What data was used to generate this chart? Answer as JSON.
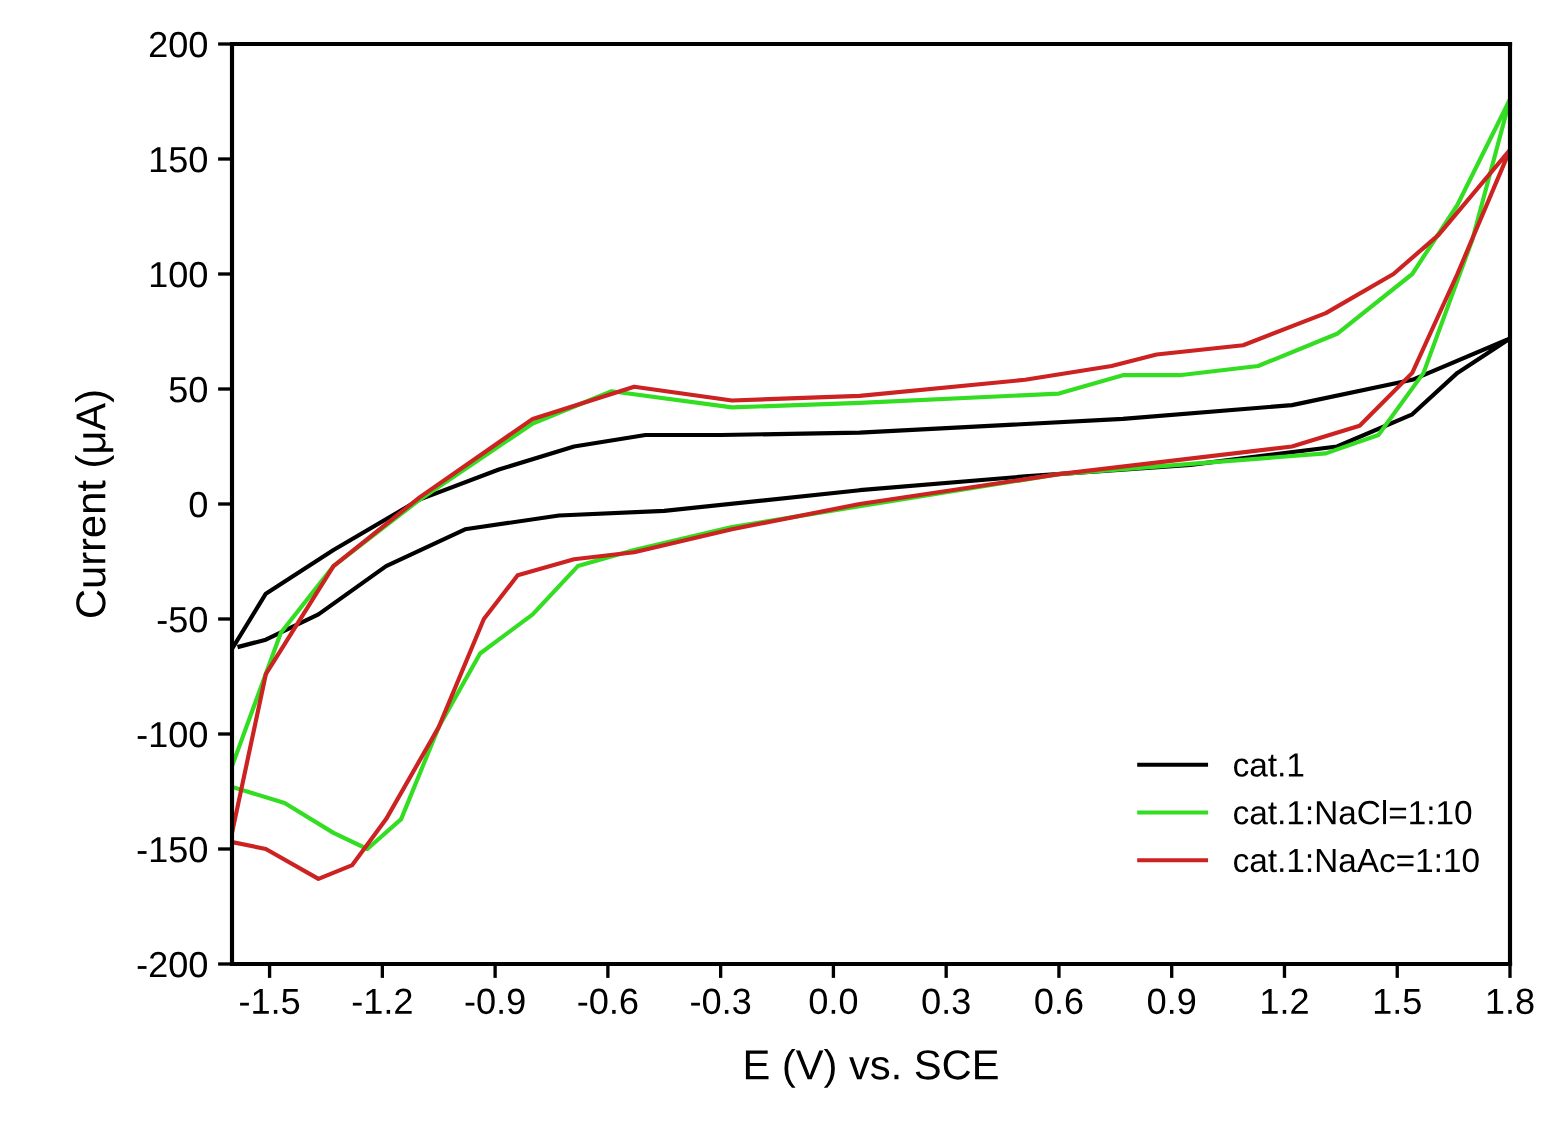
{
  "chart_data": {
    "type": "line",
    "xlabel": "E (V) vs. SCE",
    "ylabel": "Current (μA)",
    "xlim": [
      -1.6,
      1.8
    ],
    "ylim": [
      -200,
      200
    ],
    "xticks": [
      -1.5,
      -1.2,
      -0.9,
      -0.6,
      -0.3,
      {
        "value": 0,
        "label": "0.0"
      },
      0.3,
      0.6,
      0.9,
      1.2,
      1.5,
      1.8
    ],
    "yticks": [
      -200,
      -150,
      -100,
      -50,
      0,
      50,
      100,
      150,
      200
    ],
    "grid": false,
    "legend": "bottom right",
    "marker": "none",
    "line_style": "solid",
    "series": [
      {
        "name": "cat.1",
        "color": "#000000",
        "x": [
          -1.6,
          -1.51,
          -1.33,
          -1.1,
          -0.89,
          -0.69,
          -0.5,
          -0.3,
          0.07,
          0.77,
          1.22,
          1.54,
          1.8,
          1.66,
          1.54,
          1.34,
          0.95,
          0.51,
          0.07,
          -0.45,
          -0.73,
          -0.98,
          -1.19,
          -1.37,
          -1.51,
          -1.58
        ],
        "values": [
          -63,
          -39,
          -20,
          2,
          15,
          25,
          30,
          30,
          31,
          37,
          43,
          54,
          72,
          57,
          39,
          25,
          17,
          12,
          6,
          -3,
          -5,
          -11,
          -27,
          -48,
          -59,
          -62
        ]
      },
      {
        "name": "cat.1:NaCl=1:10",
        "color": "#33dd22",
        "x": [
          -1.6,
          -1.46,
          -1.33,
          -1.24,
          -1.15,
          -1.05,
          -0.94,
          -0.8,
          -0.68,
          -0.53,
          -0.27,
          0.07,
          0.6,
          1.31,
          1.45,
          1.57,
          1.7,
          1.8,
          1.66,
          1.54,
          1.34,
          1.13,
          0.92,
          0.77,
          0.6,
          0.07,
          -0.27,
          -0.59,
          -0.8,
          -1.1,
          -1.33,
          -1.47,
          -1.6
        ],
        "values": [
          -123,
          -130,
          -143,
          -150,
          -137,
          -97,
          -65,
          -48,
          -27,
          -20,
          -10,
          -1,
          13,
          22,
          30,
          57,
          115,
          176,
          130,
          100,
          74,
          60,
          56,
          56,
          48,
          44,
          42,
          49,
          35,
          2,
          -27,
          -56,
          -114
        ]
      },
      {
        "name": "cat.1:NaAc=1:10",
        "color": "#cc2222",
        "x": [
          -1.6,
          -1.51,
          -1.37,
          -1.28,
          -1.19,
          -1.05,
          -0.93,
          -0.84,
          -0.69,
          -0.53,
          -0.27,
          0.07,
          0.6,
          1.22,
          1.4,
          1.54,
          1.66,
          1.8,
          1.61,
          1.49,
          1.31,
          1.09,
          0.86,
          0.74,
          0.51,
          0.07,
          -0.27,
          -0.53,
          -0.8,
          -1.1,
          -1.33,
          -1.51,
          -1.6
        ],
        "values": [
          -147,
          -150,
          -163,
          -157,
          -137,
          -97,
          -50,
          -31,
          -24,
          -21,
          -11,
          0,
          13,
          25,
          34,
          57,
          100,
          154,
          117,
          100,
          83,
          69,
          65,
          60,
          54,
          47,
          45,
          51,
          37,
          3,
          -27,
          -74,
          -143
        ]
      }
    ]
  }
}
